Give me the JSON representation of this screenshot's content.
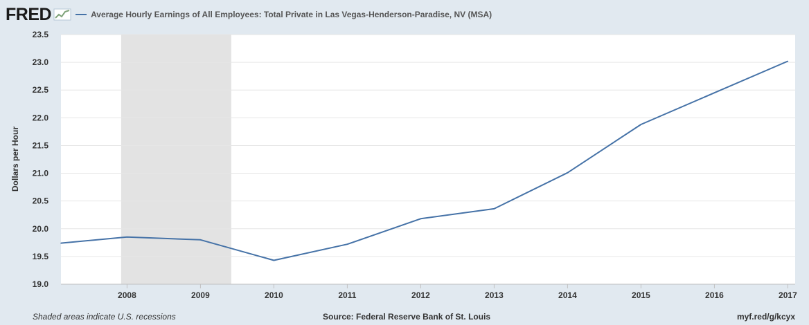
{
  "header": {
    "logo_text": "FRED",
    "logo_icon": "line-graph-icon",
    "series_title": "Average Hourly Earnings of All Employees: Total Private in Las Vegas-Henderson-Paradise, NV (MSA)"
  },
  "footer": {
    "note": "Shaded areas indicate U.S. recessions",
    "source": "Source: Federal Reserve Bank of St. Louis",
    "link": "myf.red/g/kcyx"
  },
  "colors": {
    "background": "#e1e9f0",
    "plot_background": "#ffffff",
    "series": "#4572a7",
    "recession": "#e3e3e3",
    "grid": "#e6e6e6"
  },
  "chart_data": {
    "type": "line",
    "ylabel": "Dollars per Hour",
    "xlabel": "",
    "xlim": [
      2007.1,
      2017.1
    ],
    "ylim": [
      19.0,
      23.5
    ],
    "yticks": [
      "19.0",
      "19.5",
      "20.0",
      "20.5",
      "21.0",
      "21.5",
      "22.0",
      "22.5",
      "23.0",
      "23.5"
    ],
    "xticks": [
      "2008",
      "2009",
      "2010",
      "2011",
      "2012",
      "2013",
      "2014",
      "2015",
      "2016",
      "2017"
    ],
    "grid": true,
    "recessions": [
      [
        2007.92,
        2009.42
      ]
    ],
    "series": [
      {
        "name": "Average Hourly Earnings of All Employees: Total Private in Las Vegas-Henderson-Paradise, NV (MSA)",
        "x": [
          2007.1,
          2008.0,
          2009.0,
          2010.0,
          2011.0,
          2012.0,
          2013.0,
          2014.0,
          2015.0,
          2016.0,
          2017.0
        ],
        "values": [
          19.74,
          19.85,
          19.8,
          19.43,
          19.72,
          20.18,
          20.36,
          21.01,
          21.88,
          22.45,
          23.02
        ]
      }
    ]
  }
}
